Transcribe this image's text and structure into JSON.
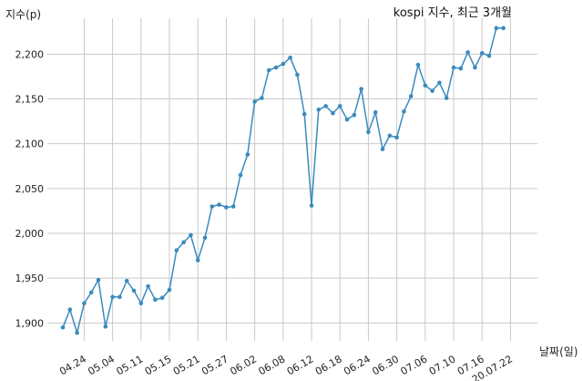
{
  "chart_data": {
    "type": "line",
    "title": "kospi 지수, 최근 3개월",
    "xlabel": "날짜(일)",
    "ylabel": "지수(p)",
    "ylim": [
      1880,
      2240
    ],
    "yticks": [
      1900,
      1950,
      2000,
      2050,
      2100,
      2150,
      2200
    ],
    "ytick_labels": [
      "1,900",
      "1,950",
      "2,000",
      "2,050",
      "2,100",
      "2,150",
      "2,200"
    ],
    "x_tick_labels": [
      "04.24",
      "05.04",
      "05.11",
      "05.15",
      "05.21",
      "05.27",
      "06.02",
      "06.08",
      "06.12",
      "06.18",
      "06.24",
      "06.30",
      "07.06",
      "07.10",
      "07.16",
      "20.07.22"
    ],
    "x_tick_index": [
      3,
      7,
      11,
      15,
      19,
      23,
      27,
      31,
      35,
      39,
      43,
      47,
      51,
      55,
      59,
      63
    ],
    "grid": true,
    "series": [
      {
        "color": "#3a8bbd",
        "values": [
          1895,
          1915,
          1889,
          1922,
          1934,
          1948,
          1896,
          1929,
          1929,
          1947,
          1936,
          1922,
          1941,
          1926,
          1928,
          1937,
          1981,
          1990,
          1998,
          1970,
          1995,
          2030,
          2032,
          2029,
          2030,
          2065,
          2088,
          2147,
          2151,
          2182,
          2185,
          2189,
          2196,
          2177,
          2133,
          2031,
          2138,
          2142,
          2134,
          2142,
          2127,
          2132,
          2161,
          2113,
          2135,
          2094,
          2109,
          2107,
          2136,
          2153,
          2188,
          2165,
          2159,
          2168,
          2151,
          2185,
          2184,
          2202,
          2185,
          2201,
          2198,
          2229,
          2229
        ]
      }
    ]
  }
}
